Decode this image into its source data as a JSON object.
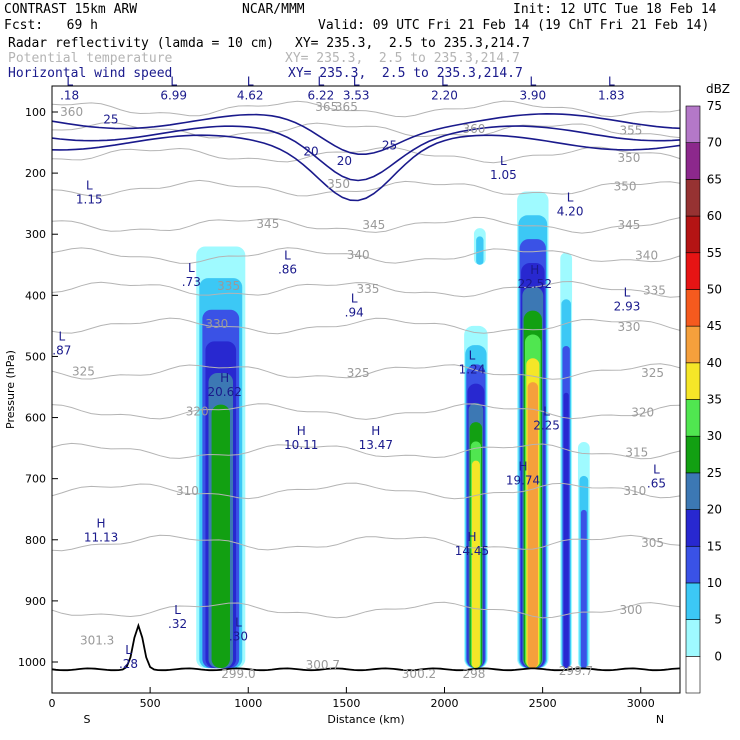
{
  "header": {
    "title_left": "CONTRAST 15km ARW",
    "title_center": "NCAR/MMM",
    "init": "Init: 12 UTC Tue 18 Feb 14",
    "fcst": "Fcst:   69 h",
    "valid": "Valid: 09 UTC Fri 21 Feb 14 (19 ChT Fri 21 Feb 14)",
    "fields": [
      {
        "name": "Radar reflectivity (lamda = 10 cm)",
        "xy": "XY= 235.3,  2.5 to 235.3,214.7",
        "color": "#000000"
      },
      {
        "name": "Potential temperature",
        "xy": "XY= 235.3,  2.5 to 235.3,214.7",
        "color": "#b4b4b4"
      },
      {
        "name": "Horizontal wind speed",
        "xy": "XY= 235.3,  2.5 to 235.3,214.7",
        "color": "#1a1a8c"
      }
    ]
  },
  "chart_data": {
    "type": "cross-section",
    "xlabel": "Distance (km)",
    "ylabel": "Pressure (hPa)",
    "xlim": [
      0,
      3200
    ],
    "ylim": [
      1050,
      50
    ],
    "xticks": [
      0,
      500,
      1000,
      1500,
      2000,
      2500,
      3000
    ],
    "yticks": [
      100,
      200,
      300,
      400,
      500,
      600,
      700,
      800,
      900,
      1000
    ],
    "x_end_labels": {
      "left": "S",
      "right": "N"
    },
    "colorbar": {
      "unit": "dBZ",
      "levels": [
        0,
        5,
        10,
        15,
        20,
        25,
        30,
        35,
        40,
        45,
        50,
        55,
        60,
        65,
        70,
        75
      ],
      "colors": [
        "#ffffff",
        "#9ffaff",
        "#3cc8f5",
        "#3a52e6",
        "#2828d0",
        "#3c78b4",
        "#12a012",
        "#50e650",
        "#f5e628",
        "#f5a03c",
        "#f55a1e",
        "#e61414",
        "#b41414",
        "#963232",
        "#8c288c",
        "#b478c8"
      ]
    },
    "reflectivity_cells": [
      {
        "x": 860,
        "p_top": 320,
        "p_bot": 1010,
        "width_km": 250,
        "max_dbz": 30
      },
      {
        "x": 2160,
        "p_top": 450,
        "p_bot": 1010,
        "width_km": 120,
        "max_dbz": 40
      },
      {
        "x": 2450,
        "p_top": 230,
        "p_bot": 1010,
        "width_km": 160,
        "max_dbz": 45
      },
      {
        "x": 2620,
        "p_top": 330,
        "p_bot": 1010,
        "width_km": 60,
        "max_dbz": 20
      },
      {
        "x": 2710,
        "p_top": 640,
        "p_bot": 1010,
        "width_km": 60,
        "max_dbz": 15
      },
      {
        "x": 2180,
        "p_top": 290,
        "p_bot": 350,
        "width_km": 60,
        "max_dbz": 10
      }
    ],
    "theta_contours": [
      {
        "label": "300",
        "p": 915
      },
      {
        "label": "305",
        "p": 805
      },
      {
        "label": "310",
        "p": 720
      },
      {
        "label": "315",
        "p": 655
      },
      {
        "label": "320",
        "p": 590
      },
      {
        "label": "325",
        "p": 525
      },
      {
        "label": "330",
        "p": 450
      },
      {
        "label": "335",
        "p": 390
      },
      {
        "label": "340",
        "p": 335
      },
      {
        "label": "345",
        "p": 285
      },
      {
        "label": "350",
        "p": 225
      },
      {
        "label": "355",
        "p": 170
      },
      {
        "label": "360",
        "p": 130
      },
      {
        "label": "365",
        "p": 95
      }
    ],
    "theta_labels": [
      {
        "text": "360",
        "x": 100,
        "p": 100
      },
      {
        "text": "365",
        "x": 1400,
        "p": 92
      },
      {
        "text": "365",
        "x": 1500,
        "p": 92
      },
      {
        "text": "360",
        "x": 2150,
        "p": 128
      },
      {
        "text": "355",
        "x": 2950,
        "p": 130
      },
      {
        "text": "350",
        "x": 2940,
        "p": 175
      },
      {
        "text": "350",
        "x": 1460,
        "p": 218
      },
      {
        "text": "350",
        "x": 2920,
        "p": 222
      },
      {
        "text": "345",
        "x": 1100,
        "p": 283
      },
      {
        "text": "345",
        "x": 1640,
        "p": 285
      },
      {
        "text": "345",
        "x": 2940,
        "p": 285
      },
      {
        "text": "340",
        "x": 1560,
        "p": 334
      },
      {
        "text": "340",
        "x": 3030,
        "p": 335
      },
      {
        "text": "335",
        "x": 900,
        "p": 385
      },
      {
        "text": "335",
        "x": 1610,
        "p": 390
      },
      {
        "text": "335",
        "x": 3070,
        "p": 392
      },
      {
        "text": "330",
        "x": 840,
        "p": 447
      },
      {
        "text": "330",
        "x": 2940,
        "p": 452
      },
      {
        "text": "325",
        "x": 160,
        "p": 525
      },
      {
        "text": "325",
        "x": 1560,
        "p": 527
      },
      {
        "text": "325",
        "x": 3060,
        "p": 527
      },
      {
        "text": "320",
        "x": 740,
        "p": 590
      },
      {
        "text": "320",
        "x": 3010,
        "p": 592
      },
      {
        "text": "315",
        "x": 2980,
        "p": 657
      },
      {
        "text": "310",
        "x": 690,
        "p": 720
      },
      {
        "text": "310",
        "x": 2970,
        "p": 720
      },
      {
        "text": "305",
        "x": 3060,
        "p": 805
      },
      {
        "text": "300",
        "x": 2950,
        "p": 915
      },
      {
        "text": "301.3",
        "x": 230,
        "p": 965
      },
      {
        "text": "300.7",
        "x": 1380,
        "p": 1005
      },
      {
        "text": "300.2",
        "x": 1870,
        "p": 1020
      },
      {
        "text": "299.0",
        "x": 950,
        "p": 1020
      },
      {
        "text": "298",
        "x": 2150,
        "p": 1020
      },
      {
        "text": "299.7",
        "x": 2670,
        "p": 1015
      }
    ],
    "wind_contour_labels": [
      {
        "text": "25",
        "x": 300,
        "p": 112
      },
      {
        "text": "25",
        "x": 1720,
        "p": 155
      },
      {
        "text": "20",
        "x": 1320,
        "p": 165
      },
      {
        "text": "20",
        "x": 1490,
        "p": 180
      }
    ],
    "wind_extrema": [
      {
        "kind": "L",
        "value": ".18",
        "x": 90,
        "p": 60
      },
      {
        "kind": "L",
        "value": "6.99",
        "x": 620,
        "p": 60
      },
      {
        "kind": "L",
        "value": "4.62",
        "x": 1010,
        "p": 60
      },
      {
        "kind": "L",
        "value": "6.22",
        "x": 1370,
        "p": 60
      },
      {
        "kind": "L",
        "value": "3.53",
        "x": 1550,
        "p": 60
      },
      {
        "kind": "L",
        "value": "2.20",
        "x": 2000,
        "p": 60
      },
      {
        "kind": "L",
        "value": "3.90",
        "x": 2450,
        "p": 60
      },
      {
        "kind": "L",
        "value": "1.83",
        "x": 2850,
        "p": 60
      },
      {
        "kind": "L",
        "value": "1.15",
        "x": 190,
        "p": 230
      },
      {
        "kind": "L",
        "value": "1.05",
        "x": 2300,
        "p": 190
      },
      {
        "kind": "L",
        "value": "4.20",
        "x": 2640,
        "p": 250
      },
      {
        "kind": "L",
        "value": ".73",
        "x": 710,
        "p": 365
      },
      {
        "kind": "L",
        "value": ".86",
        "x": 1200,
        "p": 345
      },
      {
        "kind": "L",
        "value": ".94",
        "x": 1540,
        "p": 415
      },
      {
        "kind": "H",
        "value": "22.52",
        "x": 2460,
        "p": 368
      },
      {
        "kind": "L",
        "value": "2.93",
        "x": 2930,
        "p": 405
      },
      {
        "kind": "L",
        "value": ".87",
        "x": 50,
        "p": 477
      },
      {
        "kind": "L",
        "value": "1.24",
        "x": 2140,
        "p": 508
      },
      {
        "kind": "H",
        "value": "20.62",
        "x": 880,
        "p": 545
      },
      {
        "kind": "L",
        "value": "2.25",
        "x": 2520,
        "p": 600
      },
      {
        "kind": "H",
        "value": "10.11",
        "x": 1270,
        "p": 632
      },
      {
        "kind": "H",
        "value": "13.47",
        "x": 1650,
        "p": 632
      },
      {
        "kind": "H",
        "value": "19.74",
        "x": 2400,
        "p": 690
      },
      {
        "kind": "L",
        "value": ".65",
        "x": 3080,
        "p": 695
      },
      {
        "kind": "H",
        "value": "11.13",
        "x": 250,
        "p": 783
      },
      {
        "kind": "H",
        "value": "14.45",
        "x": 2140,
        "p": 805
      },
      {
        "kind": "L",
        "value": ".32",
        "x": 640,
        "p": 925
      },
      {
        "kind": "L",
        "value": ".30",
        "x": 950,
        "p": 945
      },
      {
        "kind": "L",
        "value": ".28",
        "x": 390,
        "p": 990
      }
    ]
  }
}
